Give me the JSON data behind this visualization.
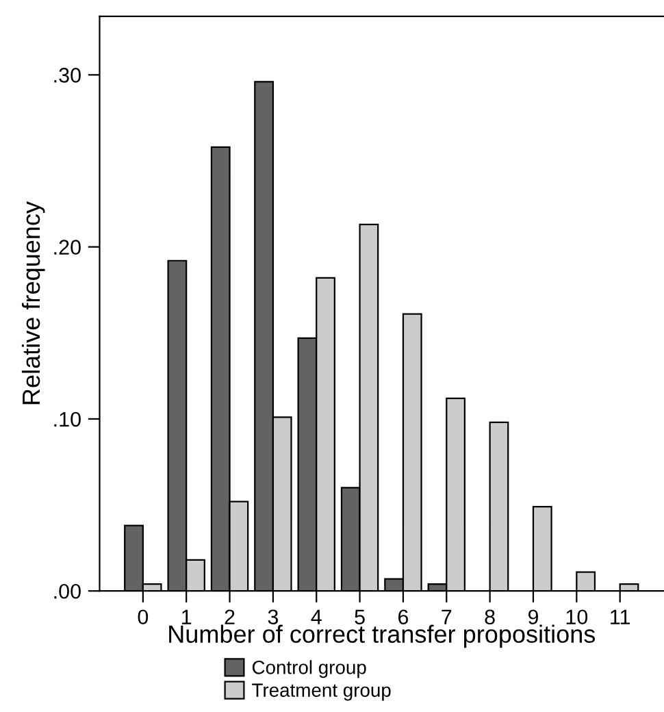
{
  "chart_data": {
    "type": "bar",
    "xlabel": "Number of correct transfer propositions",
    "ylabel": "Relative frequency",
    "categories": [
      "0",
      "1",
      "2",
      "3",
      "4",
      "5",
      "6",
      "7",
      "8",
      "9",
      "10",
      "11"
    ],
    "series": [
      {
        "name": "Control group",
        "color": "#636363",
        "values": [
          0.038,
          0.192,
          0.258,
          0.296,
          0.147,
          0.06,
          0.007,
          0.004,
          0,
          0,
          0,
          0
        ]
      },
      {
        "name": "Treatment group",
        "color": "#cccccc",
        "values": [
          0.004,
          0.018,
          0.052,
          0.101,
          0.182,
          0.213,
          0.161,
          0.112,
          0.098,
          0.049,
          0.011,
          0.004
        ]
      }
    ],
    "ylim": [
      0,
      0.334
    ],
    "yticks": [
      {
        "value": 0,
        "label": ".00"
      },
      {
        "value": 0.1,
        "label": ".10"
      },
      {
        "value": 0.2,
        "label": ".20"
      },
      {
        "value": 0.3,
        "label": ".30"
      }
    ],
    "grid": false,
    "legend": "bottom"
  }
}
